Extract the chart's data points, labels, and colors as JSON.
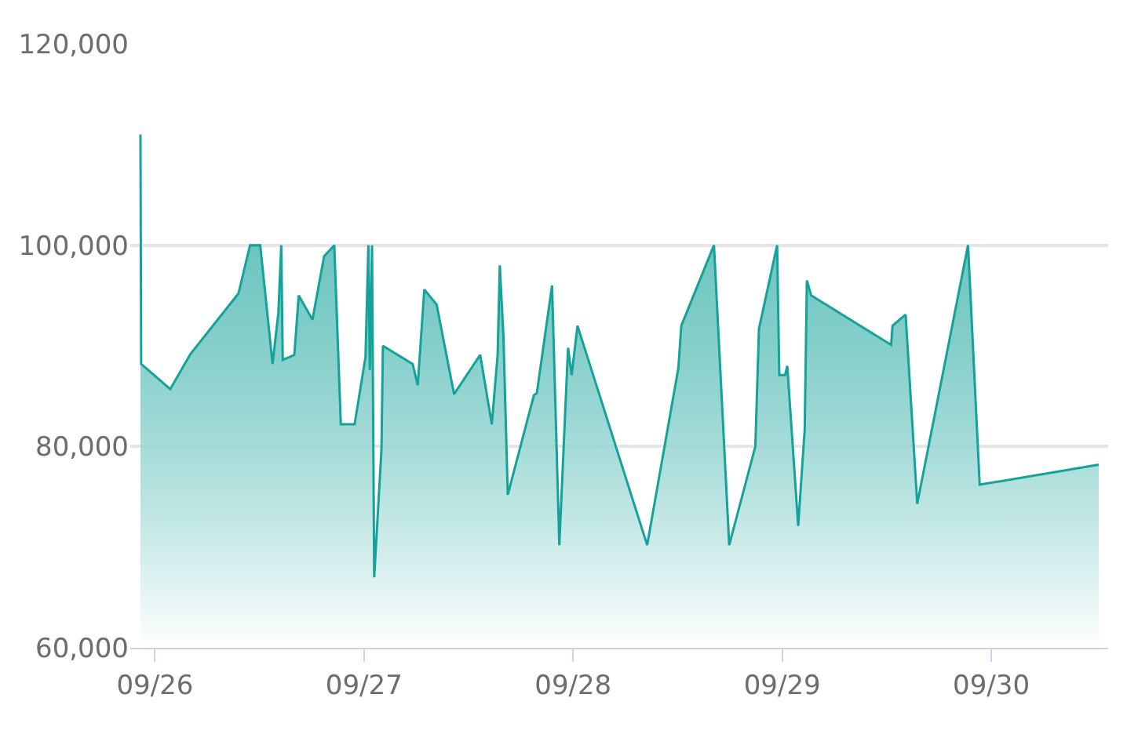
{
  "chart_data": {
    "type": "area",
    "x": [
      "--09-25T22:20",
      "--09-25T22:25",
      "--09-26T01:45",
      "--09-26T04:05",
      "--09-26T09:35",
      "--09-26T10:55",
      "--09-26T12:05",
      "--09-26T13:30",
      "--09-26T14:10",
      "--09-26T14:30",
      "--09-26T14:40",
      "--09-26T16:00",
      "--09-26T16:30",
      "--09-26T18:05",
      "--09-26T19:25",
      "--09-26T20:35",
      "--09-26T21:20",
      "--09-26T22:55",
      "--09-27T00:10",
      "--09-27T00:30",
      "--09-27T00:40",
      "--09-27T00:55",
      "--09-27T01:10",
      "--09-27T02:00",
      "--09-27T02:10",
      "--09-27T05:35",
      "--09-27T06:10",
      "--09-27T06:55",
      "--09-27T08:20",
      "--09-27T10:20",
      "--09-27T13:20",
      "--09-27T14:40",
      "--09-27T15:20",
      "--09-27T15:35",
      "--09-27T16:00",
      "--09-27T16:30",
      "--09-27T19:30",
      "--09-27T19:50",
      "--09-27T21:35",
      "--09-27T22:25",
      "--09-27T23:25",
      "--09-27T23:50",
      "--09-28T00:30",
      "--09-28T08:30",
      "--09-28T12:05",
      "--09-28T12:25",
      "--09-28T16:10",
      "--09-28T17:55",
      "--09-28T20:55",
      "--09-28T21:20",
      "--09-28T23:25",
      "--09-28T23:40",
      "--09-29T00:20",
      "--09-29T00:35",
      "--09-29T01:50",
      "--09-29T02:35",
      "--09-29T02:50",
      "--09-29T03:20",
      "--09-29T12:30",
      "--09-29T12:40",
      "--09-29T14:10",
      "--09-29T15:30",
      "--09-29T21:20",
      "--09-29T22:40",
      "--09-30T12:20"
    ],
    "series": [
      {
        "color": "#14a29a",
        "values": [
          111000,
          88200,
          85700,
          89200,
          95200,
          100000,
          100000,
          88200,
          93300,
          100000,
          88600,
          89100,
          95000,
          92600,
          98900,
          100000,
          82200,
          82200,
          88900,
          100000,
          87600,
          100000,
          67000,
          79700,
          90000,
          88200,
          86100,
          95600,
          94100,
          85200,
          89100,
          82200,
          89100,
          98000,
          91000,
          75200,
          85100,
          85300,
          96000,
          70200,
          89800,
          87100,
          92000,
          70200,
          87800,
          92000,
          100000,
          70200,
          80000,
          91700,
          100000,
          87100,
          87100,
          88000,
          72100,
          81700,
          96500,
          95000,
          90100,
          92000,
          93100,
          74300,
          100000,
          76200,
          78200
        ]
      }
    ],
    "xlim": [
      "--09-25T21:10",
      "--09-30T13:25"
    ],
    "xticks": [
      {
        "value": "--09-26",
        "label": "09/26"
      },
      {
        "value": "--09-27",
        "label": "09/27"
      },
      {
        "value": "--09-28",
        "label": "09/28"
      },
      {
        "value": "--09-29",
        "label": "09/29"
      },
      {
        "value": "--09-30",
        "label": "09/30"
      }
    ],
    "ylim": [
      60000,
      120000
    ],
    "yticks": [
      {
        "value": 60000,
        "label": "60,000"
      },
      {
        "value": 80000,
        "label": "80,000"
      },
      {
        "value": 100000,
        "label": "100,000"
      },
      {
        "value": 120000,
        "label": "120,000"
      }
    ],
    "grid": "y"
  }
}
